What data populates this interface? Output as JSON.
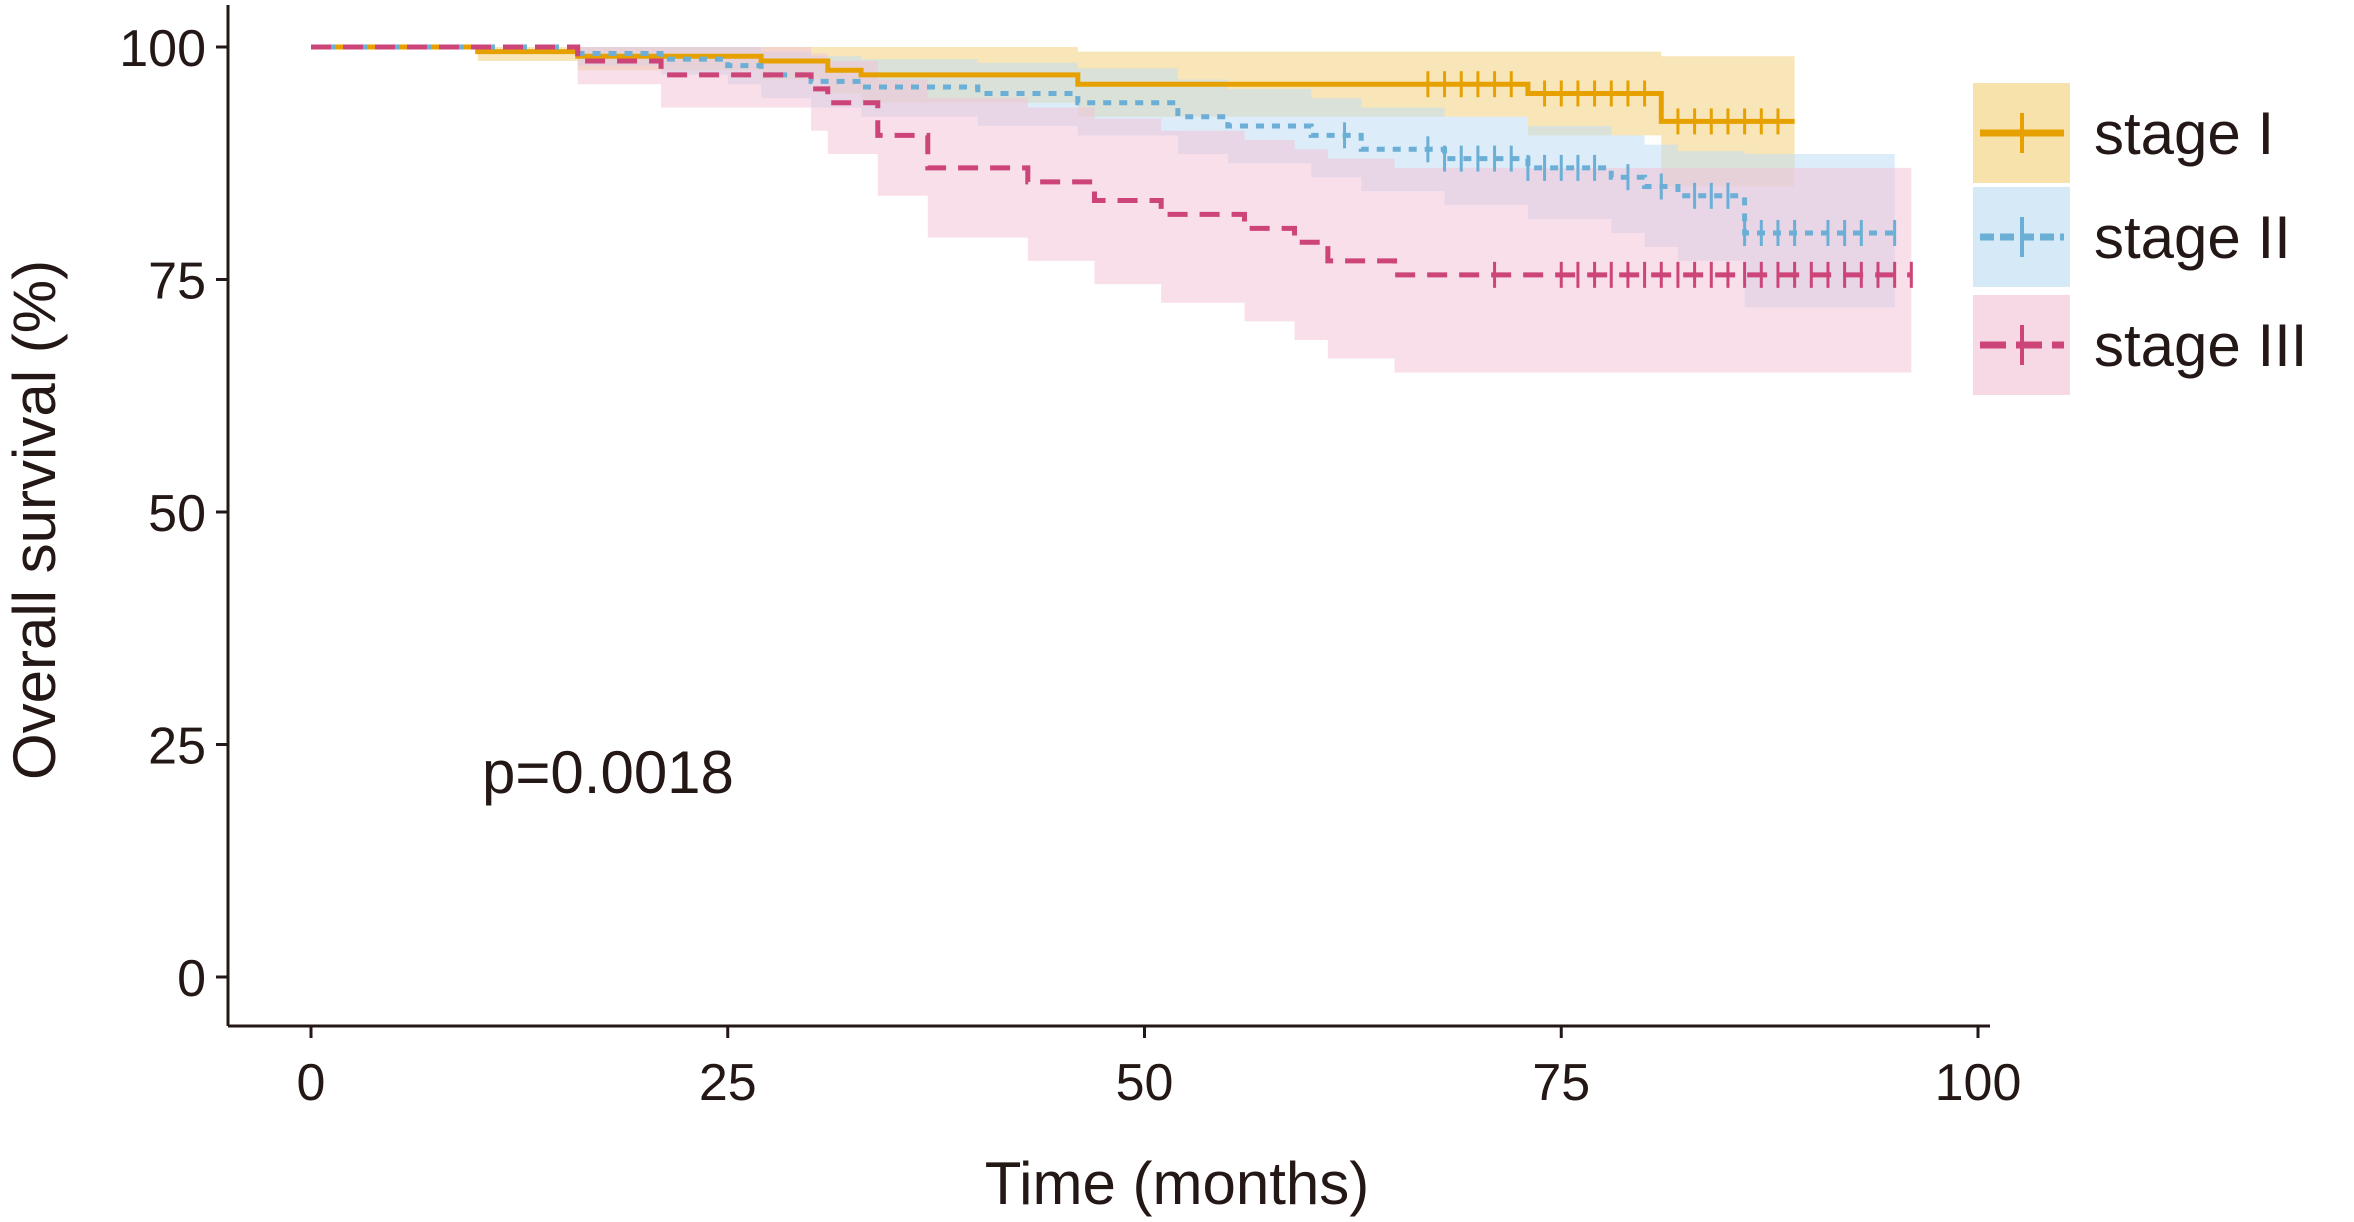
{
  "chart_data": {
    "type": "line",
    "subtype": "kaplan-meier",
    "xlabel": "Time (months)",
    "ylabel": "Overall survival (%)",
    "xlim": [
      0,
      100
    ],
    "ylim": [
      0,
      100
    ],
    "xticks": [
      "0",
      "25",
      "50",
      "75",
      "100"
    ],
    "yticks": [
      "0",
      "25",
      "50",
      "75",
      "100"
    ],
    "grid": false,
    "legend_position": "right",
    "annotation": "p=0.0018",
    "series": [
      {
        "name": "stage I",
        "color": "#E6A100",
        "band_color": "#F2D27E",
        "dash": "solid",
        "steps": [
          [
            0,
            100
          ],
          [
            10,
            99.5
          ],
          [
            16,
            99
          ],
          [
            27,
            98.5
          ],
          [
            31,
            97.5
          ],
          [
            33,
            97
          ],
          [
            46,
            96
          ],
          [
            73,
            95
          ],
          [
            81,
            92
          ],
          [
            89,
            92
          ]
        ],
        "lower": [
          [
            0,
            100
          ],
          [
            10,
            98.5
          ],
          [
            16,
            97.5
          ],
          [
            27,
            96.5
          ],
          [
            31,
            95
          ],
          [
            33,
            94
          ],
          [
            46,
            92.5
          ],
          [
            73,
            90.5
          ],
          [
            81,
            85
          ],
          [
            89,
            85
          ]
        ],
        "upper": [
          [
            0,
            100
          ],
          [
            10,
            100
          ],
          [
            16,
            100
          ],
          [
            27,
            100
          ],
          [
            31,
            100
          ],
          [
            33,
            100
          ],
          [
            46,
            99.5
          ],
          [
            73,
            99.5
          ],
          [
            81,
            99
          ],
          [
            89,
            99
          ]
        ],
        "censor_times": [
          67,
          68,
          69,
          70,
          71,
          72,
          74,
          75,
          76,
          77,
          78,
          79,
          80,
          82,
          83,
          84,
          85,
          86,
          87,
          88
        ]
      },
      {
        "name": "stage II",
        "color": "#6BAED6",
        "band_color": "#BFDDF3",
        "dash": "dotted",
        "steps": [
          [
            0,
            100
          ],
          [
            16,
            99.3
          ],
          [
            21,
            98.7
          ],
          [
            25,
            98
          ],
          [
            27,
            97
          ],
          [
            30,
            96.3
          ],
          [
            33,
            95.7
          ],
          [
            40,
            95
          ],
          [
            46,
            94
          ],
          [
            52,
            92.5
          ],
          [
            55,
            91.5
          ],
          [
            60,
            90.5
          ],
          [
            63,
            89
          ],
          [
            68,
            88
          ],
          [
            73,
            87
          ],
          [
            78,
            86
          ],
          [
            80,
            85
          ],
          [
            82,
            84
          ],
          [
            86,
            80
          ],
          [
            95,
            80
          ]
        ],
        "lower": [
          [
            0,
            100
          ],
          [
            16,
            98
          ],
          [
            21,
            97
          ],
          [
            25,
            96
          ],
          [
            27,
            94.5
          ],
          [
            30,
            93.5
          ],
          [
            33,
            92.5
          ],
          [
            40,
            91.5
          ],
          [
            46,
            90.5
          ],
          [
            52,
            88.5
          ],
          [
            55,
            87.5
          ],
          [
            60,
            86
          ],
          [
            63,
            84.5
          ],
          [
            68,
            83
          ],
          [
            73,
            81.5
          ],
          [
            78,
            80
          ],
          [
            80,
            78.5
          ],
          [
            82,
            77
          ],
          [
            86,
            72
          ],
          [
            95,
            72
          ]
        ],
        "upper": [
          [
            0,
            100
          ],
          [
            16,
            100
          ],
          [
            21,
            100
          ],
          [
            25,
            100
          ],
          [
            27,
            99.5
          ],
          [
            30,
            99
          ],
          [
            33,
            98.7
          ],
          [
            40,
            98.3
          ],
          [
            46,
            97.7
          ],
          [
            52,
            96.5
          ],
          [
            55,
            95.5
          ],
          [
            60,
            94.5
          ],
          [
            63,
            93.5
          ],
          [
            68,
            92.5
          ],
          [
            73,
            91.5
          ],
          [
            78,
            90.5
          ],
          [
            80,
            89.5
          ],
          [
            82,
            88.8
          ],
          [
            86,
            88.5
          ],
          [
            95,
            88.5
          ]
        ],
        "censor_times": [
          62,
          67,
          68,
          69,
          70,
          71,
          72,
          73,
          74,
          75,
          76,
          77,
          79,
          81,
          83,
          84,
          85,
          86,
          87,
          88,
          89,
          91,
          92,
          93,
          95
        ]
      },
      {
        "name": "stage III",
        "color": "#CC4478",
        "band_color": "#F2C4D8",
        "dash": "dashed",
        "steps": [
          [
            0,
            100
          ],
          [
            16,
            98.5
          ],
          [
            21,
            97
          ],
          [
            30,
            95.5
          ],
          [
            31,
            94
          ],
          [
            34,
            90.5
          ],
          [
            37,
            87
          ],
          [
            43,
            85.5
          ],
          [
            47,
            83.5
          ],
          [
            51,
            82
          ],
          [
            56,
            80.5
          ],
          [
            59,
            79
          ],
          [
            61,
            77
          ],
          [
            65,
            75.5
          ],
          [
            96,
            75.5
          ]
        ],
        "lower": [
          [
            0,
            100
          ],
          [
            16,
            96
          ],
          [
            21,
            93.5
          ],
          [
            30,
            91
          ],
          [
            31,
            88.5
          ],
          [
            34,
            84
          ],
          [
            37,
            79.5
          ],
          [
            43,
            77
          ],
          [
            47,
            74.5
          ],
          [
            51,
            72.5
          ],
          [
            56,
            70.5
          ],
          [
            59,
            68.5
          ],
          [
            61,
            66.5
          ],
          [
            65,
            65
          ],
          [
            96,
            65
          ]
        ],
        "upper": [
          [
            0,
            100
          ],
          [
            16,
            100
          ],
          [
            21,
            100
          ],
          [
            30,
            99.3
          ],
          [
            31,
            98.5
          ],
          [
            34,
            96.5
          ],
          [
            37,
            94.5
          ],
          [
            43,
            93.5
          ],
          [
            47,
            92.3
          ],
          [
            51,
            91
          ],
          [
            56,
            90
          ],
          [
            59,
            89
          ],
          [
            61,
            88
          ],
          [
            65,
            87
          ],
          [
            96,
            87
          ]
        ],
        "censor_times": [
          71,
          75,
          76,
          77,
          78,
          79,
          80,
          81,
          82,
          83,
          84,
          85,
          86,
          87,
          88,
          89,
          90,
          91,
          92,
          93,
          94,
          95,
          96
        ]
      }
    ]
  }
}
